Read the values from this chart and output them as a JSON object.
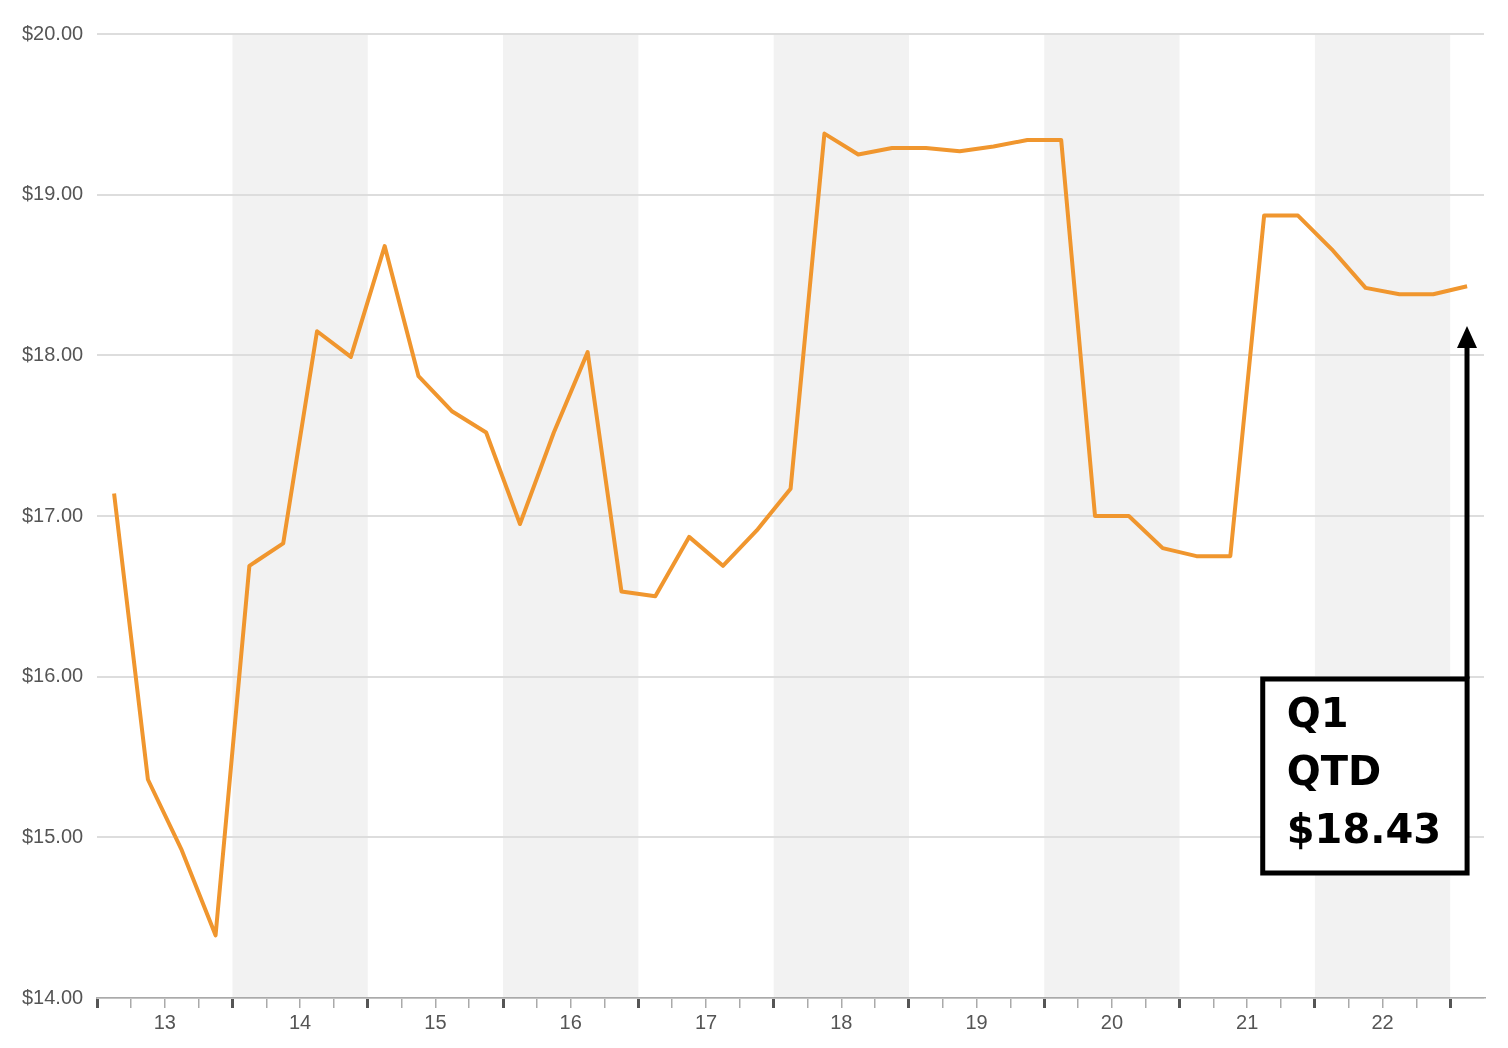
{
  "chart_data": {
    "type": "line",
    "x": [
      13.125,
      13.375,
      13.625,
      13.875,
      14.125,
      14.375,
      14.625,
      14.875,
      15.125,
      15.375,
      15.625,
      15.875,
      16.125,
      16.375,
      16.625,
      16.875,
      17.125,
      17.375,
      17.625,
      17.875,
      18.125,
      18.375,
      18.625,
      18.875,
      19.125,
      19.375,
      19.625,
      19.875,
      20.125,
      20.375,
      20.625,
      20.875,
      21.125,
      21.375,
      21.625,
      21.875,
      22.125,
      22.375,
      22.625,
      22.875,
      23.125
    ],
    "series": [
      {
        "color": "#f0962e",
        "values": [
          17.14,
          15.36,
          14.92,
          14.39,
          16.69,
          16.83,
          18.15,
          17.99,
          18.68,
          17.87,
          17.65,
          17.52,
          16.95,
          17.52,
          18.02,
          16.53,
          16.5,
          16.87,
          16.69,
          16.91,
          17.17,
          19.38,
          19.25,
          19.29,
          19.29,
          19.27,
          19.3,
          19.34,
          19.34,
          17.0,
          17.0,
          16.8,
          16.75,
          16.75,
          18.87,
          18.87,
          18.66,
          18.42,
          18.38,
          18.38,
          18.43
        ]
      }
    ],
    "xlim": [
      13,
      23.25
    ],
    "xticks": [
      {
        "value": 13,
        "label": null
      },
      {
        "value": 13.25,
        "label": null
      },
      {
        "value": 13.5,
        "label": "13"
      },
      {
        "value": 13.75,
        "label": null
      },
      {
        "value": 14,
        "label": null
      },
      {
        "value": 14.25,
        "label": null
      },
      {
        "value": 14.5,
        "label": "14"
      },
      {
        "value": 14.75,
        "label": null
      },
      {
        "value": 15,
        "label": null
      },
      {
        "value": 15.25,
        "label": null
      },
      {
        "value": 15.5,
        "label": "15"
      },
      {
        "value": 15.75,
        "label": null
      },
      {
        "value": 16,
        "label": null
      },
      {
        "value": 16.25,
        "label": null
      },
      {
        "value": 16.5,
        "label": "16"
      },
      {
        "value": 16.75,
        "label": null
      },
      {
        "value": 17,
        "label": null
      },
      {
        "value": 17.25,
        "label": null
      },
      {
        "value": 17.5,
        "label": "17"
      },
      {
        "value": 17.75,
        "label": null
      },
      {
        "value": 18,
        "label": null
      },
      {
        "value": 18.25,
        "label": null
      },
      {
        "value": 18.5,
        "label": "18"
      },
      {
        "value": 18.75,
        "label": null
      },
      {
        "value": 19,
        "label": null
      },
      {
        "value": 19.25,
        "label": null
      },
      {
        "value": 19.5,
        "label": "19"
      },
      {
        "value": 19.75,
        "label": null
      },
      {
        "value": 20,
        "label": null
      },
      {
        "value": 20.25,
        "label": null
      },
      {
        "value": 20.5,
        "label": "20"
      },
      {
        "value": 20.75,
        "label": null
      },
      {
        "value": 21,
        "label": null
      },
      {
        "value": 21.25,
        "label": null
      },
      {
        "value": 21.5,
        "label": "21"
      },
      {
        "value": 21.75,
        "label": null
      },
      {
        "value": 22,
        "label": null
      },
      {
        "value": 22.25,
        "label": null
      },
      {
        "value": 22.5,
        "label": "22"
      },
      {
        "value": 22.75,
        "label": null
      },
      {
        "value": 23,
        "label": null
      }
    ],
    "ylim": [
      14,
      20
    ],
    "yticks": [
      {
        "value": 14,
        "label": "$14.00"
      },
      {
        "value": 15,
        "label": "$15.00"
      },
      {
        "value": 16,
        "label": "$16.00"
      },
      {
        "value": 17,
        "label": "$17.00"
      },
      {
        "value": 18,
        "label": "$18.00"
      },
      {
        "value": 19,
        "label": "$19.00"
      },
      {
        "value": 20,
        "label": "$20.00"
      }
    ],
    "bands": [
      {
        "axis": "x",
        "from": 14,
        "to": 15,
        "color": "#f2f2f2"
      },
      {
        "axis": "x",
        "from": 16,
        "to": 17,
        "color": "#f2f2f2"
      },
      {
        "axis": "x",
        "from": 18,
        "to": 19,
        "color": "#f2f2f2"
      },
      {
        "axis": "x",
        "from": 20,
        "to": 21,
        "color": "#f2f2f2"
      },
      {
        "axis": "x",
        "from": 22,
        "to": 23,
        "color": "#f2f2f2"
      }
    ],
    "annotations": [
      "Q1\nQTD\n$18.43"
    ],
    "grid": "y",
    "legend": false,
    "marker": "none",
    "line_style": "solid"
  }
}
